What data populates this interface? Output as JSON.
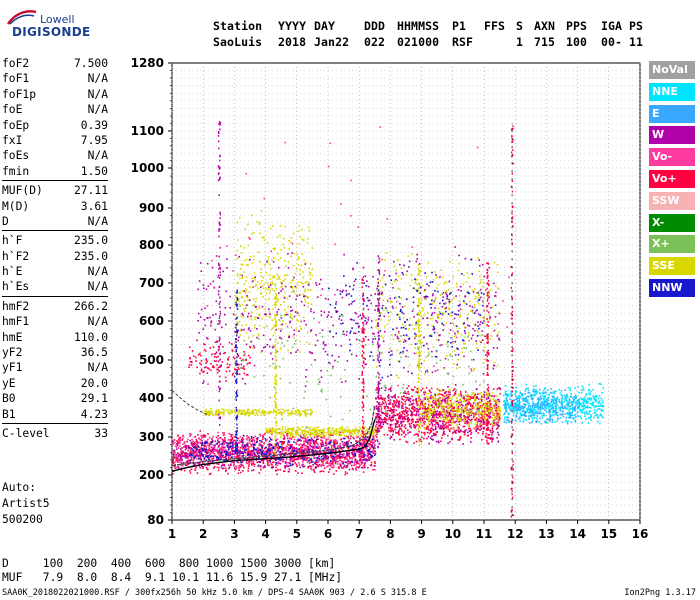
{
  "logo": {
    "top": "Lowell",
    "bottom": "DIGISONDE"
  },
  "header": {
    "labels": [
      "Station",
      "YYYY",
      "DAY",
      "DDD",
      "HHMMSS",
      "P1",
      "FFS",
      "S",
      "AXN",
      "PPS",
      "IGA",
      "PS"
    ],
    "values": [
      "SaoLuis",
      "2018",
      "Jan22",
      "022",
      "021000",
      "RSF",
      "",
      "1",
      "715",
      "100",
      "00-",
      "11"
    ]
  },
  "parameters": [
    [
      {
        "name": "foF2",
        "value": "7.500"
      },
      {
        "name": "foF1",
        "value": "N/A"
      },
      {
        "name": "foF1p",
        "value": "N/A"
      },
      {
        "name": "foE",
        "value": "N/A"
      },
      {
        "name": "foEp",
        "value": "0.39"
      },
      {
        "name": "fxI",
        "value": "7.95"
      },
      {
        "name": "foEs",
        "value": "N/A"
      },
      {
        "name": "fmin",
        "value": "1.50"
      }
    ],
    [
      {
        "name": "MUF(D)",
        "value": "27.11"
      },
      {
        "name": "M(D)",
        "value": "3.61"
      },
      {
        "name": "D",
        "value": "N/A"
      }
    ],
    [
      {
        "name": "h`F",
        "value": "235.0"
      },
      {
        "name": "h`F2",
        "value": "235.0"
      },
      {
        "name": "h`E",
        "value": "N/A"
      },
      {
        "name": "h`Es",
        "value": "N/A"
      }
    ],
    [
      {
        "name": "hmF2",
        "value": "266.2"
      },
      {
        "name": "hmF1",
        "value": "N/A"
      },
      {
        "name": "hmE",
        "value": "110.0"
      },
      {
        "name": "yF2",
        "value": "36.5"
      },
      {
        "name": "yF1",
        "value": "N/A"
      },
      {
        "name": "yE",
        "value": "20.0"
      },
      {
        "name": "B0",
        "value": "29.1"
      },
      {
        "name": "B1",
        "value": "4.23"
      }
    ],
    [
      {
        "name": "C-level",
        "value": "33"
      }
    ]
  ],
  "auto": {
    "line1": "Auto:",
    "line2": "Artist5",
    "line3": "500200"
  },
  "legend": [
    {
      "label": "NoVal",
      "color": "#a0a0a0"
    },
    {
      "label": "NNE",
      "color": "#00e5ff"
    },
    {
      "label": "E",
      "color": "#3aa8ff"
    },
    {
      "label": "W",
      "color": "#b000a8"
    },
    {
      "label": "Vo-",
      "color": "#ff3aa0"
    },
    {
      "label": "Vo+",
      "color": "#ff0040"
    },
    {
      "label": "SSW",
      "color": "#f7b3b3"
    },
    {
      "label": "X-",
      "color": "#008c00"
    },
    {
      "label": "X+",
      "color": "#7cc05a"
    },
    {
      "label": "SSE",
      "color": "#d8d800"
    },
    {
      "label": "NNW",
      "color": "#1818cc"
    }
  ],
  "dmuf": {
    "d_row": "D     100  200  400  600  800 1000 1500 3000 [km]",
    "muf_row": "MUF   7.9  8.0  8.4  9.1 10.1 11.6 15.9 27.1 [MHz]"
  },
  "footer": {
    "left": "SAA0K_2018022021000.RSF / 300fx256h 50 kHz 5.0 km / DPS-4 SAA0K 903 / 2.6 S 315.8 E",
    "right": "Ion2Png 1.3.17"
  },
  "chart_data": {
    "type": "scatter",
    "x_ticks": [
      1,
      2,
      3,
      4,
      5,
      6,
      7,
      8,
      9,
      10,
      11,
      12,
      13,
      14,
      15,
      16
    ],
    "y_ticks": [
      80,
      200,
      300,
      400,
      500,
      600,
      700,
      800,
      900,
      1000,
      1100,
      1280
    ],
    "xlim": [
      1,
      16
    ],
    "ylim": [
      80,
      1280
    ],
    "x_units": "MHz",
    "y_units": "km",
    "grid": true,
    "legend_position": "right",
    "trace_profile": {
      "x": [
        1.0,
        1.5,
        2.0,
        3.0,
        4.0,
        5.0,
        6.0,
        7.0,
        7.2,
        7.35,
        7.5
      ],
      "y": [
        210,
        220,
        228,
        238,
        243,
        249,
        257,
        268,
        275,
        300,
        345
      ]
    },
    "trace_virtual_height": {
      "x": [
        1.0,
        2.0,
        3.0,
        4.0,
        5.0,
        6.0,
        6.8,
        7.2,
        7.4,
        7.5
      ],
      "y": [
        225,
        235,
        243,
        250,
        257,
        265,
        278,
        300,
        335,
        380
      ]
    },
    "trace_upper": {
      "x": [
        1.0,
        1.2,
        1.5,
        1.8,
        2.2
      ],
      "y": [
        420,
        405,
        385,
        370,
        355
      ]
    },
    "marked_frequency": 11.9,
    "clusters": [
      {
        "color": "#ff0040",
        "x": [
          1.0,
          7.5
        ],
        "y": [
          200,
          320
        ],
        "n": 1100
      },
      {
        "color": "#ff3aa0",
        "x": [
          1.0,
          7.5
        ],
        "y": [
          210,
          320
        ],
        "n": 600
      },
      {
        "color": "#b000a8",
        "x": [
          1.0,
          7.5
        ],
        "y": [
          210,
          310
        ],
        "n": 400
      },
      {
        "color": "#1818cc",
        "x": [
          1.5,
          7.5
        ],
        "y": [
          220,
          310
        ],
        "n": 300
      },
      {
        "color": "#d8d800",
        "x": [
          4.0,
          7.5
        ],
        "y": [
          300,
          330
        ],
        "n": 300
      },
      {
        "color": "#d8d800",
        "x": [
          2.0,
          5.5
        ],
        "y": [
          355,
          375
        ],
        "n": 220
      },
      {
        "color": "#ff0040",
        "x": [
          7.5,
          11.5
        ],
        "y": [
          280,
          440
        ],
        "n": 900
      },
      {
        "color": "#b000a8",
        "x": [
          7.5,
          11.5
        ],
        "y": [
          280,
          440
        ],
        "n": 400
      },
      {
        "color": "#d8d800",
        "x": [
          9.0,
          11.5
        ],
        "y": [
          320,
          430
        ],
        "n": 350
      },
      {
        "color": "#00e5ff",
        "x": [
          11.6,
          14.8
        ],
        "y": [
          330,
          440
        ],
        "n": 650
      },
      {
        "color": "#3aa8ff",
        "x": [
          11.6,
          14.0
        ],
        "y": [
          330,
          430
        ],
        "n": 250
      },
      {
        "color": "#d8d800",
        "x": [
          3.0,
          5.5
        ],
        "y": [
          500,
          900
        ],
        "n": 350
      },
      {
        "color": "#b000a8",
        "x": [
          1.8,
          11.5
        ],
        "y": [
          420,
          800
        ],
        "n": 500
      },
      {
        "color": "#ff0040",
        "x": [
          1.5,
          3.5
        ],
        "y": [
          440,
          560
        ],
        "n": 120
      },
      {
        "color": "#d8d800",
        "x": [
          7.5,
          11.5
        ],
        "y": [
          450,
          800
        ],
        "n": 300
      },
      {
        "color": "#1818cc",
        "x": [
          6.0,
          11.0
        ],
        "y": [
          450,
          800
        ],
        "n": 180
      },
      {
        "color": "#7cc05a",
        "x": [
          3.0,
          11.0
        ],
        "y": [
          300,
          700
        ],
        "n": 150
      },
      {
        "color": "#ff3aa0",
        "x": [
          2.0,
          12.0
        ],
        "y": [
          200,
          1150
        ],
        "n": 60
      }
    ],
    "vertical_streaks": [
      {
        "color": "#b000a8",
        "x": 2.5,
        "y": [
          240,
          1150
        ]
      },
      {
        "color": "#1818cc",
        "x": 3.05,
        "y": [
          260,
          700
        ]
      },
      {
        "color": "#d8d800",
        "x": 4.3,
        "y": [
          260,
          720
        ]
      },
      {
        "color": "#ff0040",
        "x": 7.1,
        "y": [
          260,
          720
        ]
      },
      {
        "color": "#b000a8",
        "x": 7.6,
        "y": [
          260,
          780
        ]
      },
      {
        "color": "#d8d800",
        "x": 8.9,
        "y": [
          280,
          750
        ]
      },
      {
        "color": "#ff0040",
        "x": 11.1,
        "y": [
          280,
          760
        ]
      },
      {
        "color": "#ff0040",
        "x": 11.88,
        "y": [
          90,
          1120
        ]
      }
    ]
  }
}
